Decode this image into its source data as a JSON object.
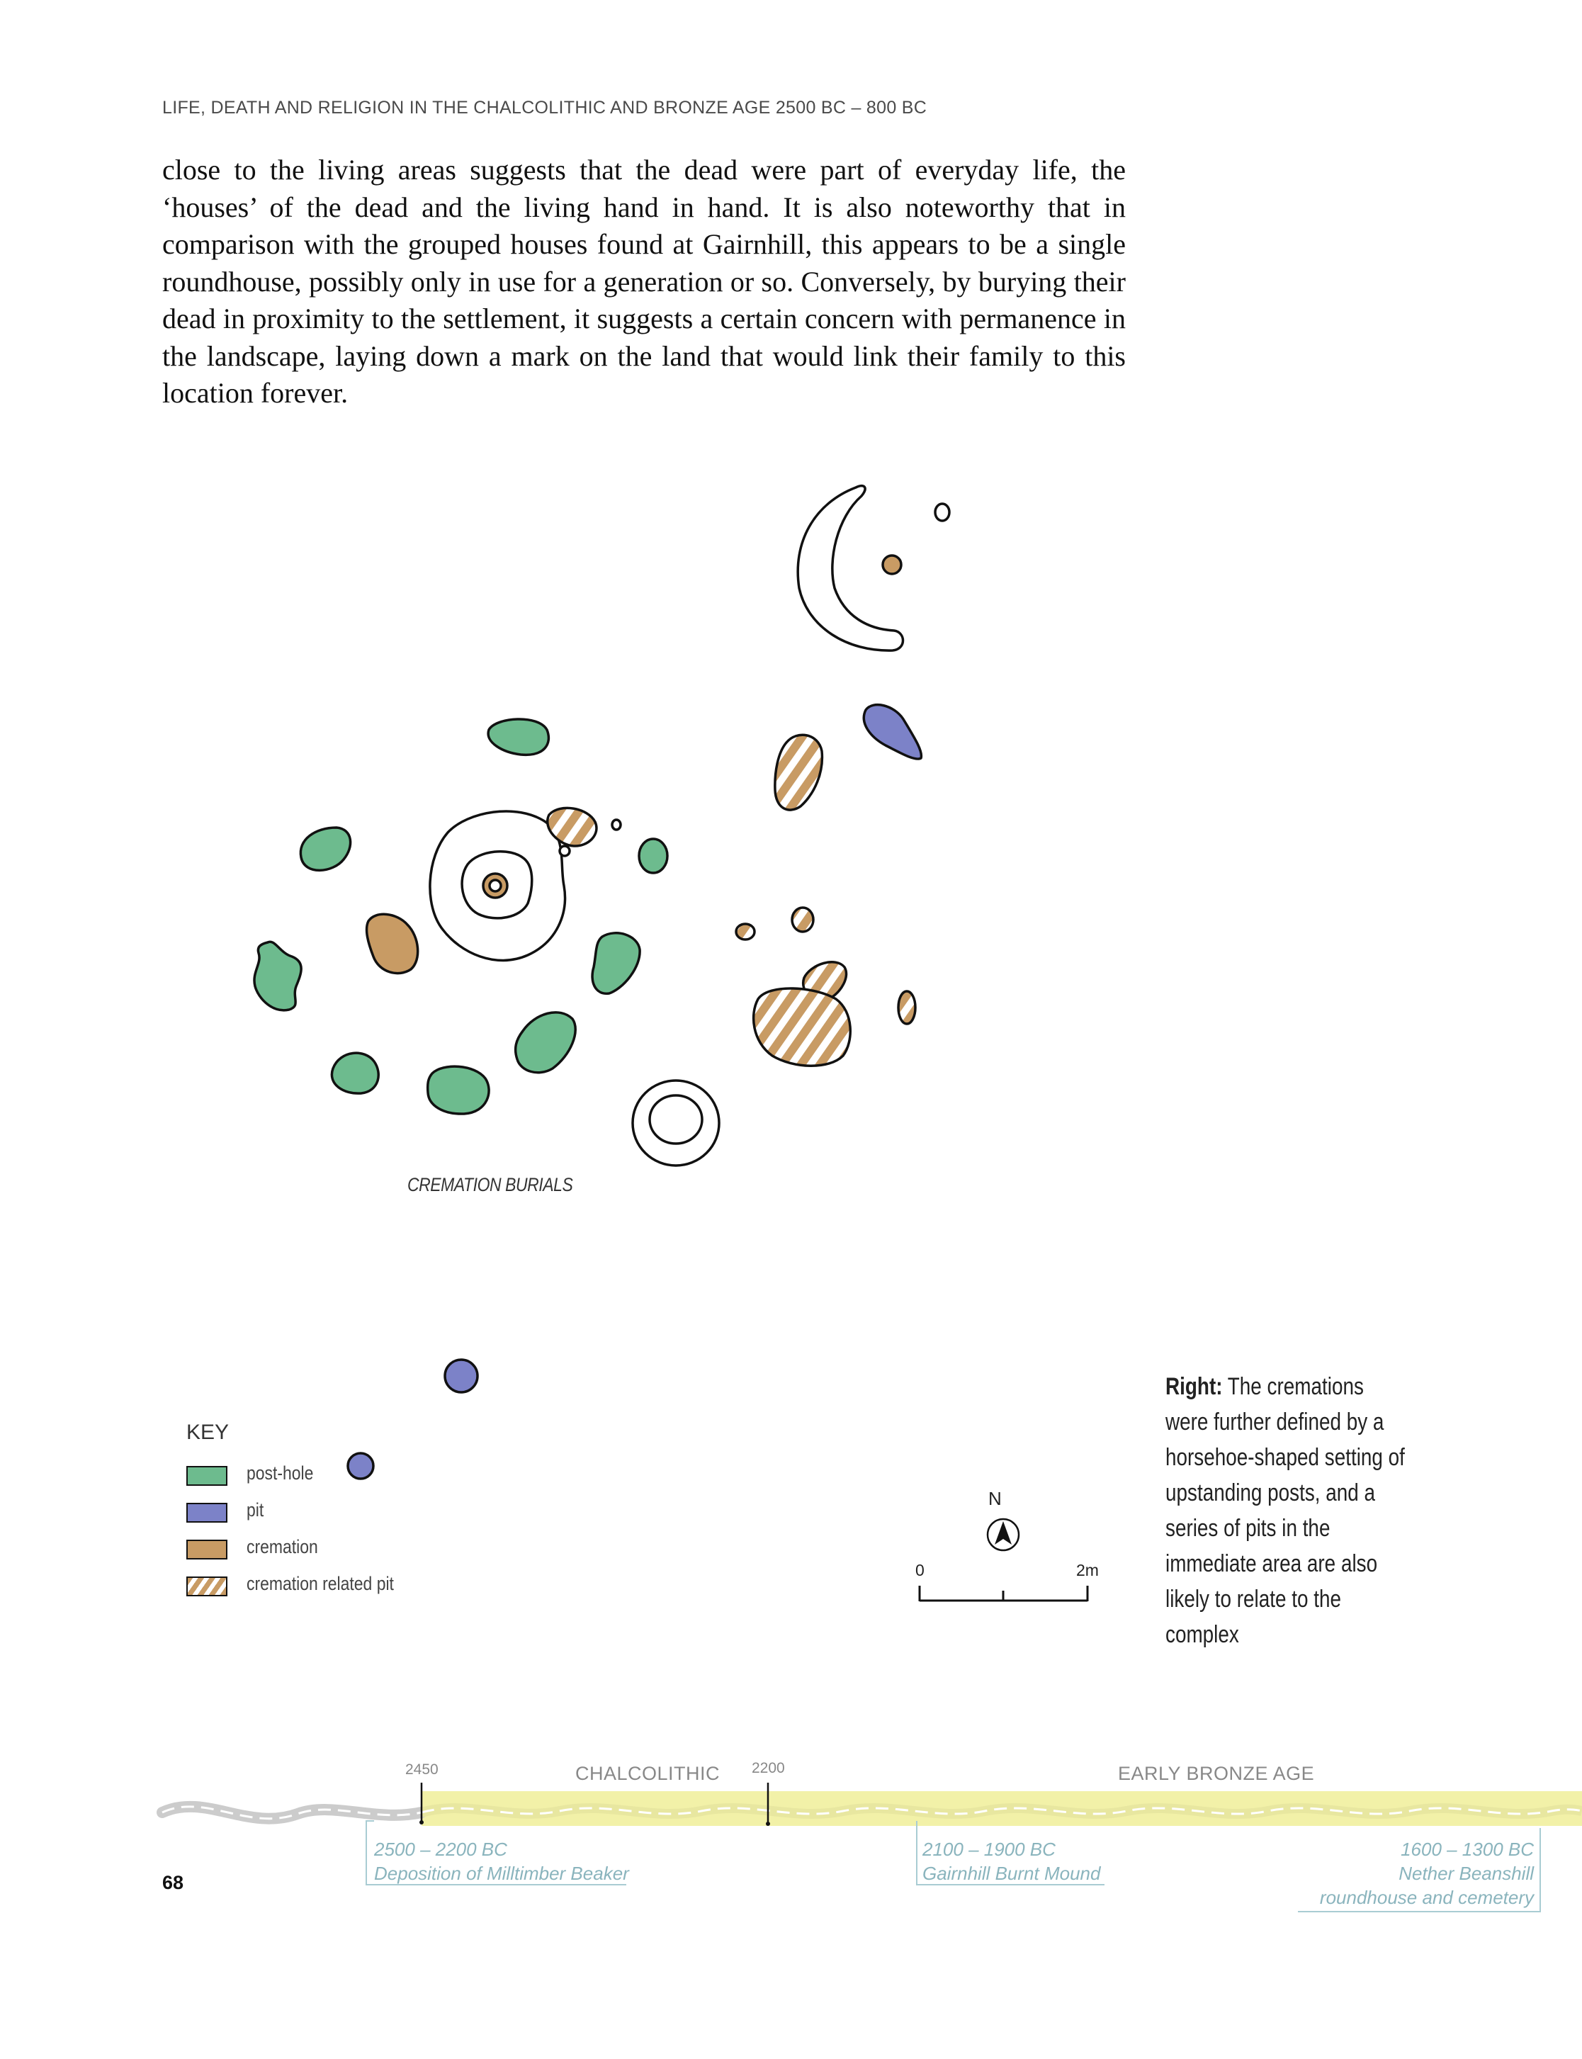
{
  "header": {
    "running_head": "LIFE, DEATH AND RELIGION IN THE CHALCOLITHIC AND BRONZE AGE 2500 BC – 800 BC"
  },
  "body": {
    "paragraph": "close to the living areas suggests that the dead were part of everyday life, the ‘houses’ of the dead and the living hand in hand. It is also noteworthy that in comparison with the grouped houses found at Gairnhill, this appears to be a single roundhouse, possibly only in use for a generation or so. Conversely, by burying their dead in proximity to the settlement, it suggests a certain concern with permanence in the landscape, laying down a mark on the land that would link their family to this location forever."
  },
  "figure": {
    "label": "CREMATION BURIALS",
    "key": {
      "title": "KEY",
      "items": [
        {
          "label": "post-hole",
          "color": "#6dbb8e"
        },
        {
          "label": "pit",
          "color": "#7c82c8"
        },
        {
          "label": "cremation",
          "color": "#c89b64"
        },
        {
          "label": "cremation related pit",
          "color": "#c89b64",
          "pattern": "hatched"
        }
      ]
    },
    "north_label": "N",
    "scale": {
      "start": "0",
      "end": "2m"
    },
    "colors": {
      "post_hole": "#6dbb8e",
      "pit": "#7c82c8",
      "cremation": "#c89b64",
      "outline": "#111111"
    }
  },
  "caption": {
    "lead": "Right:",
    "text": "The cremations were further defined by a horsehoe-shaped setting of upstanding posts, and a series of pits in the immediate area are also likely to relate to the complex"
  },
  "timeline": {
    "years": [
      "2450",
      "2200"
    ],
    "periods": [
      "CHALCOLITHIC",
      "EARLY BRONZE AGE"
    ],
    "events": [
      {
        "date": "2500 – 2200 BC",
        "label": "Deposition of Milltimber Beaker"
      },
      {
        "date": "2100 – 1900 BC",
        "label": "Gairnhill Burnt Mound"
      },
      {
        "date": "1600 – 1300 BC",
        "label": "Nether Beanshill roundhouse and cemetery"
      }
    ],
    "highlight_color": "#f2f1a8",
    "event_color": "#8ab4bd"
  },
  "page_number": "68"
}
